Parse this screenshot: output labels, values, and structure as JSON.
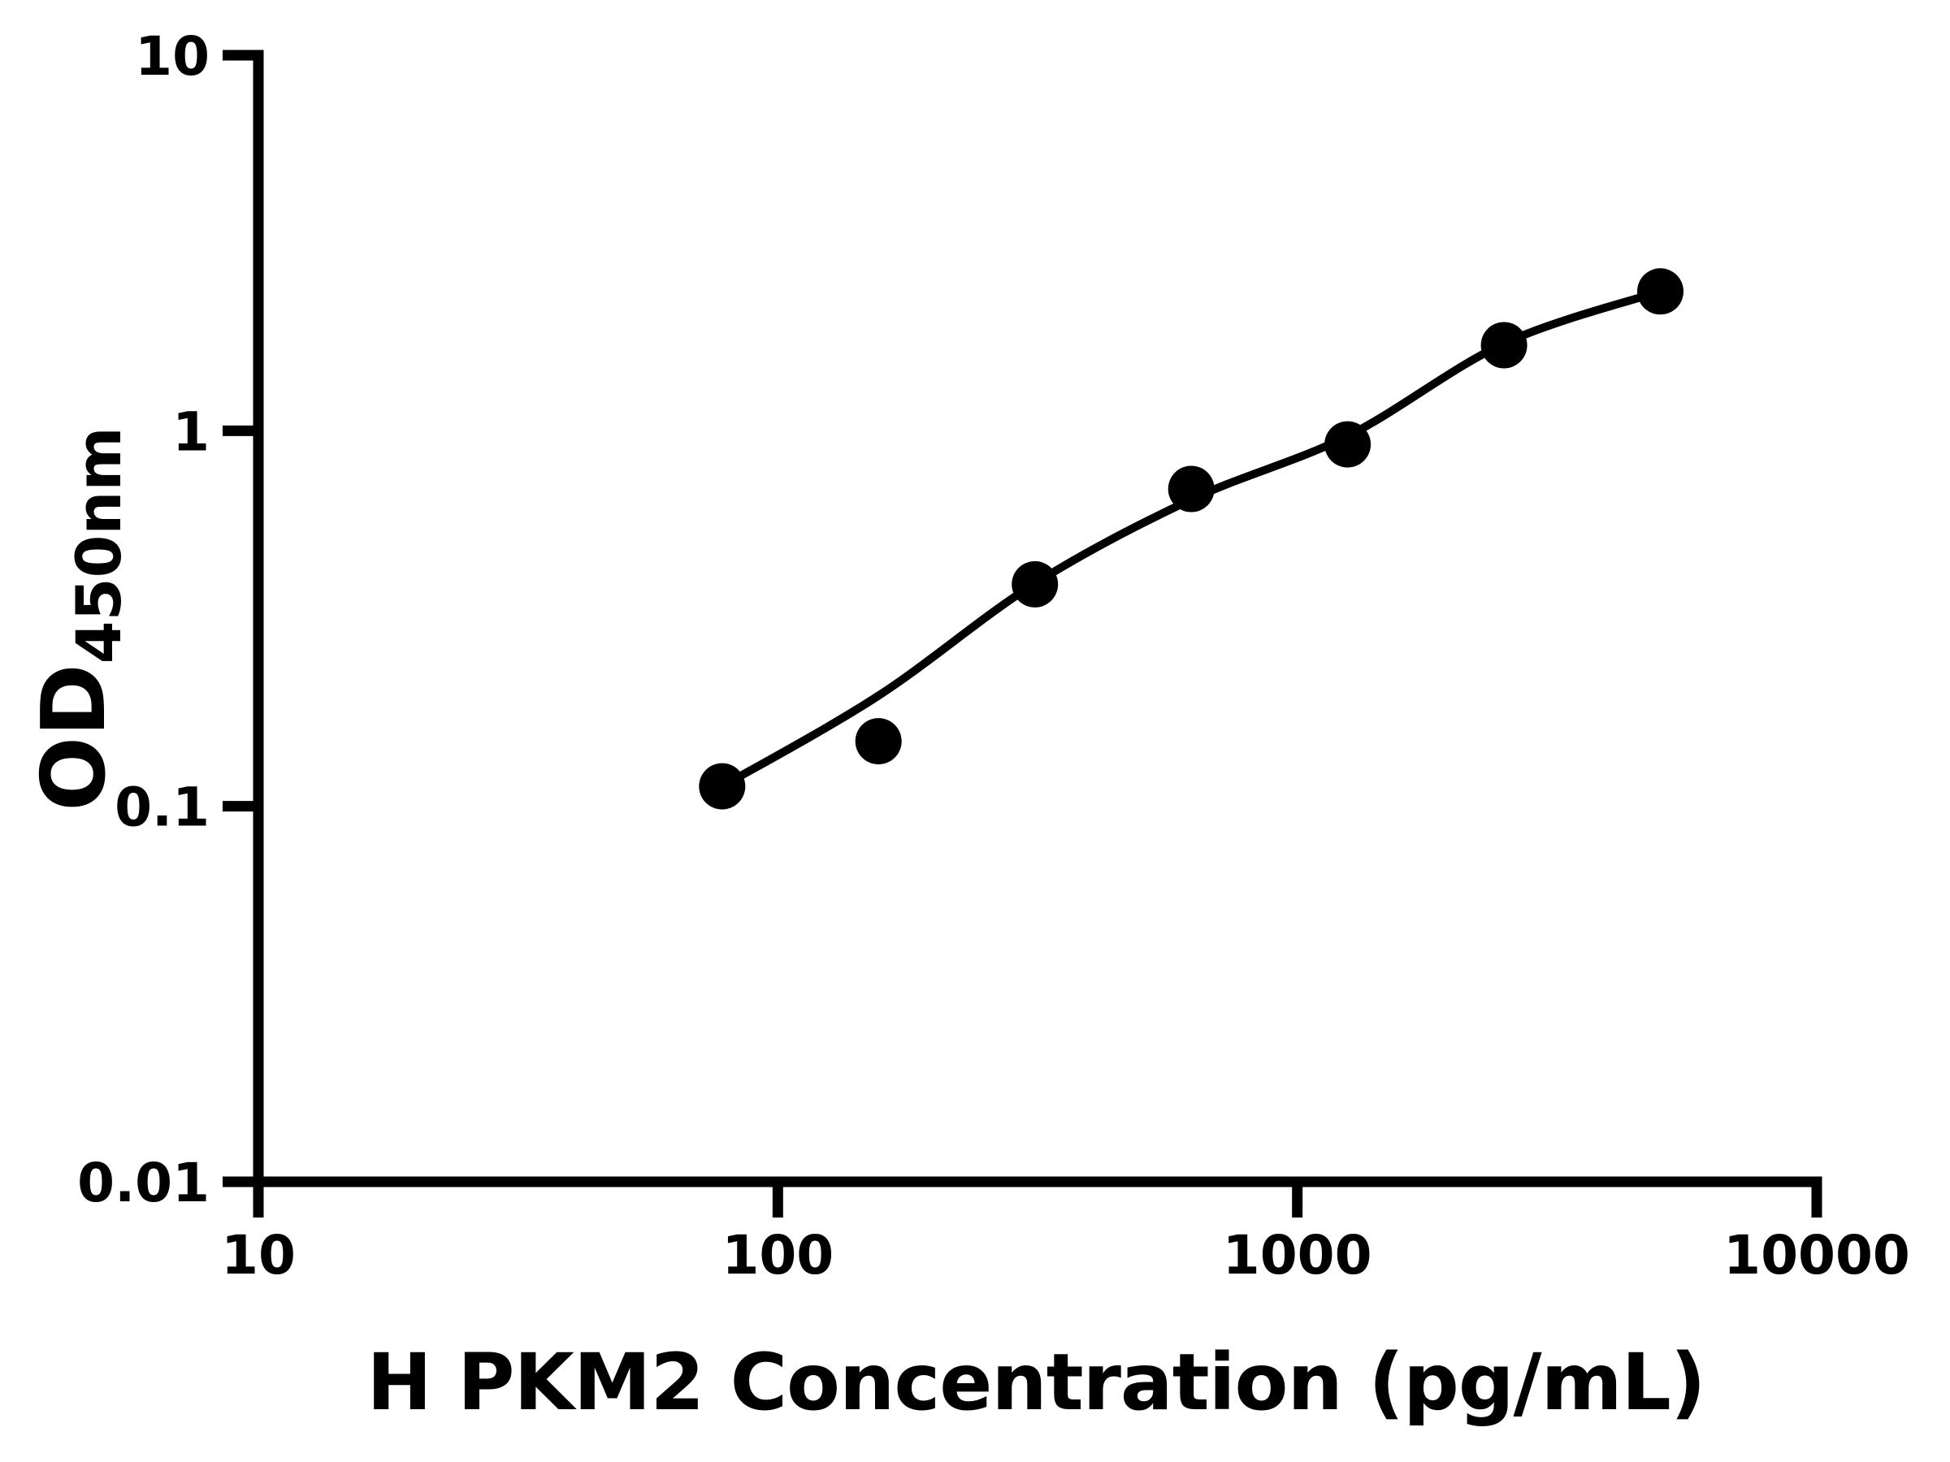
{
  "chart_data": {
    "type": "scatter",
    "title": "",
    "xlabel": "H PKM2 Concentration (pg/mL)",
    "ylabel_base": "OD",
    "ylabel_sub": "450nm",
    "x_scale": "log10",
    "y_scale": "log10",
    "xlim": [
      10,
      10000
    ],
    "ylim": [
      0.01,
      10
    ],
    "grid": false,
    "legend": "none",
    "background": "#ffffff",
    "axis_color": "#000000",
    "marker_color": "#000000",
    "curve_color": "#000000",
    "x_ticks": [
      {
        "value": 10,
        "label": "10"
      },
      {
        "value": 100,
        "label": "100"
      },
      {
        "value": 1000,
        "label": "1000"
      },
      {
        "value": 10000,
        "label": "10000"
      }
    ],
    "y_ticks": [
      {
        "value": 10,
        "label": "10"
      },
      {
        "value": 1,
        "label": "1"
      },
      {
        "value": 0.1,
        "label": "0.1"
      },
      {
        "value": 0.01,
        "label": "0.01"
      }
    ],
    "points": [
      {
        "conc_pg_ml": 78.125,
        "od": 0.113
      },
      {
        "conc_pg_ml": 156.25,
        "od": 0.149
      },
      {
        "conc_pg_ml": 312.5,
        "od": 0.39
      },
      {
        "conc_pg_ml": 625,
        "od": 0.7
      },
      {
        "conc_pg_ml": 1250,
        "od": 0.92
      },
      {
        "conc_pg_ml": 2500,
        "od": 1.69
      },
      {
        "conc_pg_ml": 5000,
        "od": 2.35
      }
    ],
    "fit_curve": [
      {
        "conc_pg_ml": 78.125,
        "od": 0.113
      },
      {
        "conc_pg_ml": 156.25,
        "od": 0.197
      },
      {
        "conc_pg_ml": 312.5,
        "od": 0.392
      },
      {
        "conc_pg_ml": 625,
        "od": 0.656
      },
      {
        "conc_pg_ml": 1250,
        "od": 0.968
      },
      {
        "conc_pg_ml": 2500,
        "od": 1.708
      },
      {
        "conc_pg_ml": 5000,
        "od": 2.35
      }
    ]
  }
}
